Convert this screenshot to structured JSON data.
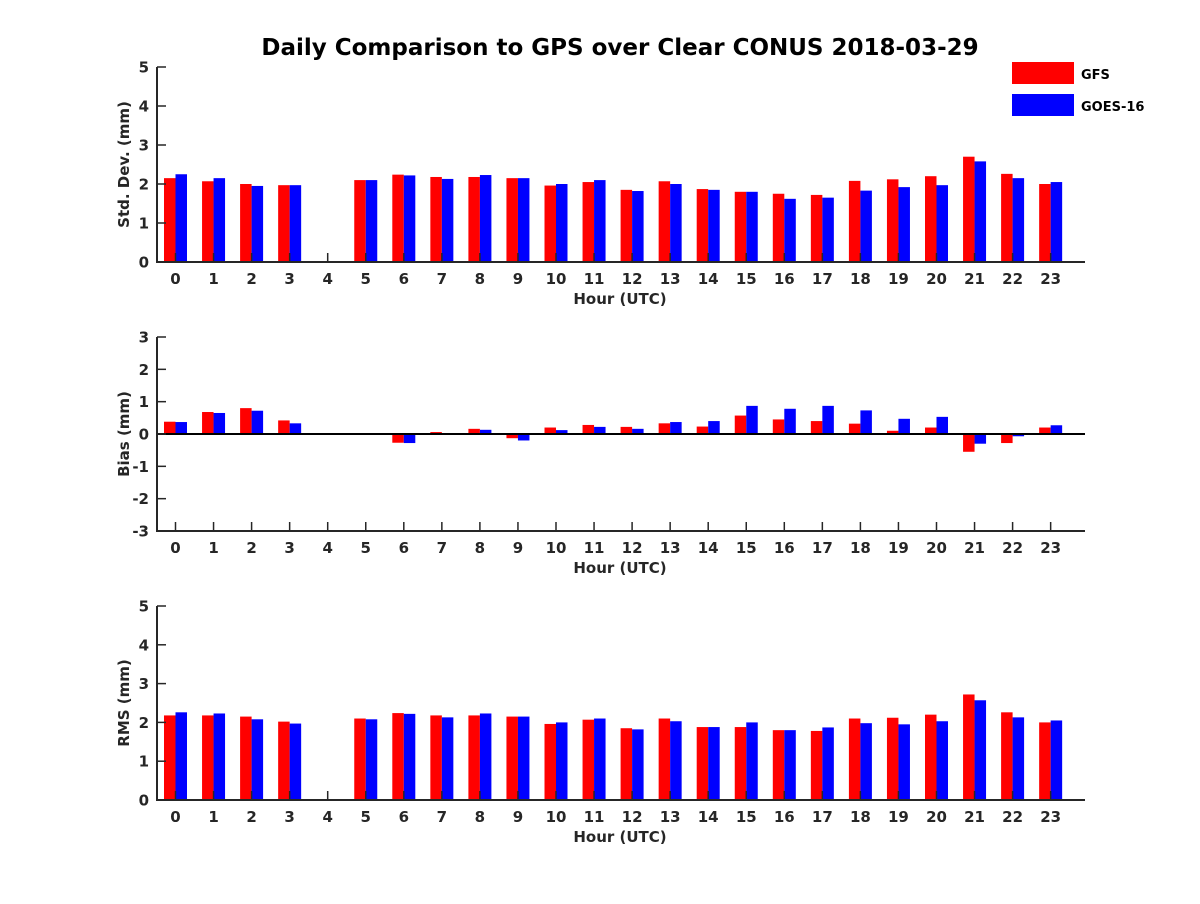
{
  "title": "Daily Comparison to GPS over Clear CONUS 2018-03-29",
  "legend": [
    {
      "name": "GFS",
      "color": "#ff0000"
    },
    {
      "name": "GOES-16",
      "color": "#0000ff"
    }
  ],
  "chart_data": [
    {
      "type": "bar",
      "title": "Daily Comparison to GPS over Clear CONUS 2018-03-29",
      "xlabel": "Hour (UTC)",
      "ylabel": "Std. Dev. (mm)",
      "ylim": [
        0,
        5
      ],
      "yticks": [
        0,
        1,
        2,
        3,
        4,
        5
      ],
      "categories": [
        "0",
        "1",
        "2",
        "3",
        "4",
        "5",
        "6",
        "7",
        "8",
        "9",
        "10",
        "11",
        "12",
        "13",
        "14",
        "15",
        "16",
        "17",
        "18",
        "19",
        "20",
        "21",
        "22",
        "23"
      ],
      "series": [
        {
          "name": "GFS",
          "color": "#ff0000",
          "values": [
            2.15,
            2.07,
            2.0,
            1.97,
            null,
            2.1,
            2.24,
            2.18,
            2.18,
            2.15,
            1.96,
            2.05,
            1.85,
            2.07,
            1.87,
            1.8,
            1.75,
            1.72,
            2.08,
            2.12,
            2.2,
            2.7,
            2.26,
            2.0
          ]
        },
        {
          "name": "GOES-16",
          "color": "#0000ff",
          "values": [
            2.25,
            2.15,
            1.95,
            1.97,
            null,
            2.1,
            2.22,
            2.13,
            2.23,
            2.15,
            2.0,
            2.1,
            1.82,
            2.0,
            1.85,
            1.8,
            1.62,
            1.65,
            1.83,
            1.92,
            1.97,
            2.58,
            2.15,
            2.05
          ]
        }
      ]
    },
    {
      "type": "bar",
      "xlabel": "Hour (UTC)",
      "ylabel": "Bias (mm)",
      "ylim": [
        -3,
        3
      ],
      "yticks": [
        -3,
        -2,
        -1,
        0,
        1,
        2,
        3
      ],
      "categories": [
        "0",
        "1",
        "2",
        "3",
        "4",
        "5",
        "6",
        "7",
        "8",
        "9",
        "10",
        "11",
        "12",
        "13",
        "14",
        "15",
        "16",
        "17",
        "18",
        "19",
        "20",
        "21",
        "22",
        "23"
      ],
      "series": [
        {
          "name": "GFS",
          "color": "#ff0000",
          "values": [
            0.38,
            0.68,
            0.8,
            0.42,
            null,
            -0.03,
            -0.27,
            0.06,
            0.16,
            -0.13,
            0.2,
            0.28,
            0.22,
            0.33,
            0.23,
            0.57,
            0.45,
            0.4,
            0.32,
            0.1,
            0.2,
            -0.55,
            -0.28,
            0.2
          ]
        },
        {
          "name": "GOES-16",
          "color": "#0000ff",
          "values": [
            0.37,
            0.65,
            0.72,
            0.33,
            null,
            -0.01,
            -0.28,
            0.03,
            0.13,
            -0.2,
            0.12,
            0.22,
            0.16,
            0.37,
            0.4,
            0.87,
            0.78,
            0.87,
            0.73,
            0.47,
            0.53,
            -0.3,
            -0.07,
            0.27
          ]
        }
      ]
    },
    {
      "type": "bar",
      "xlabel": "Hour (UTC)",
      "ylabel": "RMS (mm)",
      "ylim": [
        0,
        5
      ],
      "yticks": [
        0,
        1,
        2,
        3,
        4,
        5
      ],
      "categories": [
        "0",
        "1",
        "2",
        "3",
        "4",
        "5",
        "6",
        "7",
        "8",
        "9",
        "10",
        "11",
        "12",
        "13",
        "14",
        "15",
        "16",
        "17",
        "18",
        "19",
        "20",
        "21",
        "22",
        "23"
      ],
      "series": [
        {
          "name": "GFS",
          "color": "#ff0000",
          "values": [
            2.18,
            2.18,
            2.15,
            2.02,
            null,
            2.1,
            2.24,
            2.18,
            2.18,
            2.15,
            1.96,
            2.07,
            1.85,
            2.1,
            1.88,
            1.88,
            1.8,
            1.78,
            2.1,
            2.12,
            2.2,
            2.72,
            2.26,
            2.0
          ]
        },
        {
          "name": "GOES-16",
          "color": "#0000ff",
          "values": [
            2.26,
            2.23,
            2.08,
            1.97,
            null,
            2.08,
            2.22,
            2.13,
            2.23,
            2.15,
            2.0,
            2.1,
            1.82,
            2.03,
            1.88,
            2.0,
            1.8,
            1.87,
            1.98,
            1.95,
            2.03,
            2.57,
            2.13,
            2.05
          ]
        }
      ]
    }
  ]
}
